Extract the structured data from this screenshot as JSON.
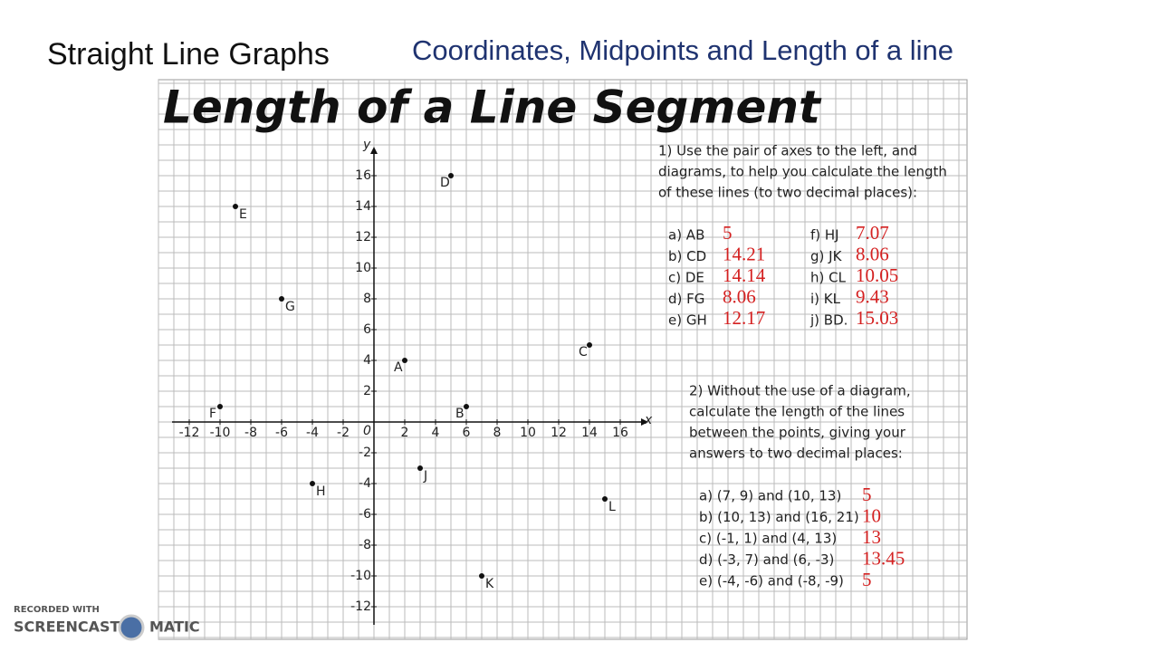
{
  "header": {
    "title": "Straight Line Graphs",
    "subtitle": "Coordinates, Midpoints and Length of a line"
  },
  "worksheet": {
    "heading": "Length of a Line Segment",
    "graph": {
      "x_label": "x",
      "y_label": "y",
      "origin": "0",
      "xticks": [
        -12,
        -10,
        -8,
        -6,
        -4,
        -2,
        2,
        4,
        6,
        8,
        10,
        12,
        14,
        16
      ],
      "yticks": [
        16,
        14,
        12,
        10,
        8,
        6,
        4,
        2,
        -2,
        -4,
        -6,
        -8,
        -10,
        -12
      ],
      "points": [
        {
          "label": "A",
          "x": 2,
          "y": 4
        },
        {
          "label": "B",
          "x": 6,
          "y": 1
        },
        {
          "label": "C",
          "x": 14,
          "y": 5
        },
        {
          "label": "D",
          "x": 5,
          "y": 16
        },
        {
          "label": "E",
          "x": -9,
          "y": 14
        },
        {
          "label": "F",
          "x": -10,
          "y": 1
        },
        {
          "label": "G",
          "x": -6,
          "y": 8
        },
        {
          "label": "H",
          "x": -4,
          "y": -4
        },
        {
          "label": "J",
          "x": 3,
          "y": -3
        },
        {
          "label": "K",
          "x": 7,
          "y": -10
        },
        {
          "label": "L",
          "x": 15,
          "y": -5
        }
      ]
    },
    "question1": {
      "prompt": [
        "1) Use the pair of axes to the left, and",
        "diagrams, to help you calculate the length",
        "of these lines (to two decimal places):"
      ],
      "items": [
        {
          "label": "a) AB",
          "answer": 5
        },
        {
          "label": "b) CD",
          "answer": 14.21
        },
        {
          "label": "c) DE",
          "answer": 14.14
        },
        {
          "label": "d) FG",
          "answer": 8.06
        },
        {
          "label": "e) GH",
          "answer": 12.17
        },
        {
          "label": "f) HJ",
          "answer": 7.07
        },
        {
          "label": "g) JK",
          "answer": 8.06
        },
        {
          "label": "h) CL",
          "answer": 10.05
        },
        {
          "label": "i) KL",
          "answer": 9.43
        },
        {
          "label": "j) BD.",
          "answer": 15.03
        }
      ]
    },
    "question2": {
      "prompt": [
        "2) Without the use of a diagram,",
        "calculate the length of the lines",
        "between the points, giving your",
        "answers to two decimal places:"
      ],
      "items": [
        {
          "label": "a) (7, 9) and (10, 13)",
          "answer": 5
        },
        {
          "label": "b) (10, 13) and (16, 21)",
          "answer": 10
        },
        {
          "label": "c) (-1, 1) and (4, 13)",
          "answer": 13
        },
        {
          "label": "d) (-3, 7) and (6, -3)",
          "answer": 13.45
        },
        {
          "label": "e) (-4, -6) and (-8, -9)",
          "answer": 5
        }
      ]
    }
  },
  "watermark": {
    "line1": "RECORDED WITH",
    "line2": "SCREENCAST",
    "line3": "MATIC"
  }
}
